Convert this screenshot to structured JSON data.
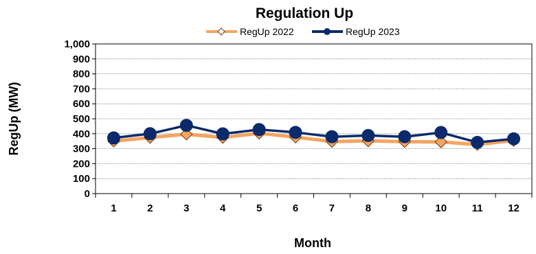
{
  "chart_data": {
    "type": "line",
    "title": "Regulation Up",
    "xlabel": "Month",
    "ylabel": "RegUp (MW)",
    "categories": [
      "1",
      "2",
      "3",
      "4",
      "5",
      "6",
      "7",
      "8",
      "9",
      "10",
      "11",
      "12"
    ],
    "ylim": [
      0,
      1000
    ],
    "yticks": [
      0,
      100,
      200,
      300,
      400,
      500,
      600,
      700,
      800,
      900,
      1000
    ],
    "ytick_labels": [
      "0",
      "100",
      "200",
      "300",
      "400",
      "500",
      "600",
      "700",
      "800",
      "900",
      "1,000"
    ],
    "grid": "horizontal dotted",
    "legend_position": "top",
    "series": [
      {
        "name": "RegUp 2022",
        "color": "#f4a460",
        "marker": "diamond",
        "values": [
          350,
          375,
          397,
          375,
          403,
          377,
          348,
          352,
          347,
          345,
          328,
          355
        ]
      },
      {
        "name": "RegUp 2023",
        "color": "#0b2a6b",
        "marker": "circle",
        "values": [
          372,
          400,
          456,
          399,
          428,
          409,
          380,
          388,
          380,
          408,
          342,
          366
        ]
      }
    ]
  }
}
